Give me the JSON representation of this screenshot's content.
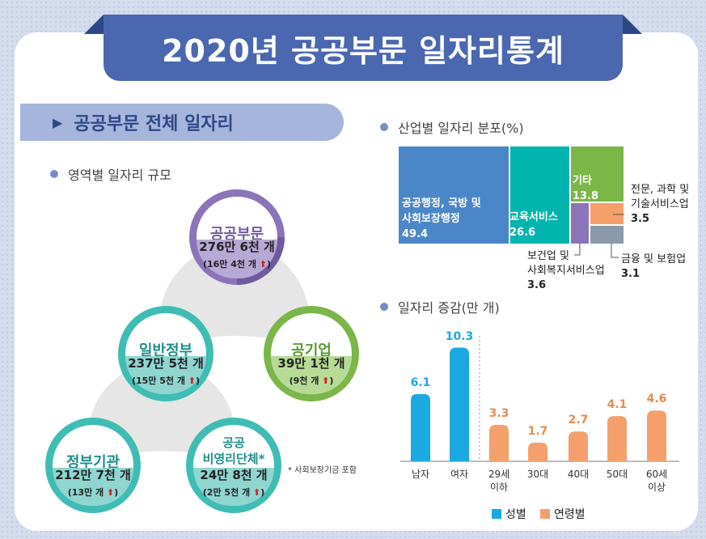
{
  "title": "2020년 공공부문 일자리통계",
  "section": "공공부문 전체 일자리",
  "scale_heading": "영역별 일자리 규모",
  "nodes": {
    "public": {
      "label": "공공부문",
      "value": "276만 6천 개",
      "increase": "(16만 4천 개"
    },
    "government": {
      "label": "일반정부",
      "value": "237만 5천 개",
      "increase": "(15만 5천 개"
    },
    "enterprise": {
      "label": "공기업",
      "value": "39만 1천 개",
      "increase": "(9천 개"
    },
    "agencies": {
      "label": "정부기관",
      "value": "212만 7천 개",
      "increase": "(13만 개"
    },
    "nonprofit": {
      "label": "공공\n비영리단체*",
      "value": "24만 8천 개",
      "increase": "(2만 5천 개"
    }
  },
  "note": "* 사회보장기금 포함",
  "increase_suffix": " ⬆)",
  "colors": {
    "purple": "#8b75b8",
    "teal": "#3fbdb5",
    "green": "#7ab648",
    "blue": "#4a86c8",
    "orange": "#f5a06a",
    "sky": "#1aa9e1",
    "gray": "#8a9aa8"
  },
  "chart_data": [
    {
      "type": "treemap",
      "title": "산업별 일자리 분포(%)",
      "items": [
        {
          "name": "공공행정, 국방 및 사회보장행정",
          "value": 49.4
        },
        {
          "name": "교육서비스",
          "value": 26.6
        },
        {
          "name": "기타",
          "value": 13.8
        },
        {
          "name": "보건업 및 사회복지서비스업",
          "value": 3.6
        },
        {
          "name": "전문, 과학 및 기술서비스업",
          "value": 3.5
        },
        {
          "name": "금융 및 보험업",
          "value": 3.1
        }
      ],
      "labels": {
        "a": "공공행정, 국방 및\n사회보장행정",
        "b": "교육서비스",
        "c": "기타",
        "d": "보건업 및\n사회복지서비스업",
        "e": "전문, 과학 및\n기술서비스업",
        "f": "금융 및 보험업"
      }
    },
    {
      "type": "bar",
      "title": "일자리 증감(만 개)",
      "categories": [
        "남자",
        "여자",
        "29세\n이하",
        "30대",
        "40대",
        "50대",
        "60세\n이상"
      ],
      "values": [
        6.1,
        10.3,
        3.3,
        1.7,
        2.7,
        4.1,
        4.6
      ],
      "groups": [
        "성별",
        "성별",
        "연령별",
        "연령별",
        "연령별",
        "연령별",
        "연령별"
      ],
      "legend": [
        "성별",
        "연령별"
      ],
      "ylim": [
        0,
        11
      ]
    }
  ]
}
